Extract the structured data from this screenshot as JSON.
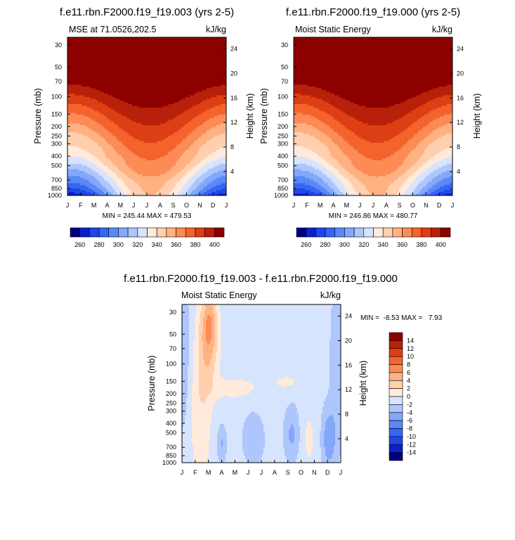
{
  "months": [
    "J",
    "F",
    "M",
    "A",
    "M",
    "J",
    "J",
    "A",
    "S",
    "O",
    "N",
    "D",
    "J"
  ],
  "pressure_ticks": [
    "30",
    "50",
    "70",
    "100",
    "150",
    "200",
    "250",
    "300",
    "400",
    "500",
    "700",
    "850",
    "1000"
  ],
  "height_ticks": [
    "24",
    "20",
    "16",
    "12",
    "8",
    "4"
  ],
  "panels": [
    {
      "title": "f.e11.rbn.F2000.f19_f19.003 (yrs 2-5)",
      "left_label": "MSE at 71.0526,202.5",
      "right_label": "kJ/kg",
      "ylabel": "Pressure (mb)",
      "y2label": "Height (km)",
      "stats": "MIN = 245.44 MAX = 479.53",
      "palette": [
        "#00007f",
        "#0a21c9",
        "#1f46e8",
        "#3566f2",
        "#5b88f7",
        "#84a7f9",
        "#adc6fb",
        "#d6e4fd",
        "#ffeadb",
        "#ffcfae",
        "#ffb182",
        "#fc8b55",
        "#f5632c",
        "#dd3f14",
        "#b8200a",
        "#8c0000"
      ],
      "bounds": [
        245,
        300,
        352,
        480
      ],
      "colorbar_ticks": [
        "260",
        "280",
        "300",
        "320",
        "340",
        "360",
        "380",
        "400"
      ]
    },
    {
      "title": "f.e11.rbn.F2000.f19_f19.000 (yrs 2-5)",
      "left_label": "Moist Static Energy",
      "right_label": "kJ/kg",
      "ylabel": "Pressure (mb)",
      "y2label": "Height (km)",
      "stats": "MIN = 246.86 MAX = 480.77",
      "palette": [
        "#00007f",
        "#0a21c9",
        "#1f46e8",
        "#3566f2",
        "#5b88f7",
        "#84a7f9",
        "#adc6fb",
        "#d6e4fd",
        "#ffeadb",
        "#ffcfae",
        "#ffb182",
        "#fc8b55",
        "#f5632c",
        "#dd3f14",
        "#b8200a",
        "#8c0000"
      ],
      "bounds": [
        246,
        301,
        352,
        481
      ],
      "colorbar_ticks": [
        "260",
        "280",
        "300",
        "320",
        "340",
        "360",
        "380",
        "400"
      ]
    },
    {
      "title": "f.e11.rbn.F2000.f19_f19.003 - f.e11.rbn.F2000.f19_f19.000",
      "left_label": "Moist Static Energy",
      "right_label": "kJ/kg",
      "ylabel": "Pressure (mb)",
      "y2label": "Height (km)",
      "stats": "MIN =  -8.53 MAX =   7.93",
      "palette": [
        "#8c0000",
        "#b8200a",
        "#dd3f14",
        "#f5632c",
        "#fc8b55",
        "#ffb182",
        "#ffcfae",
        "#ffeadb",
        "#d6e4fd",
        "#adc6fb",
        "#84a7f9",
        "#5b88f7",
        "#3566f2",
        "#1f46e8",
        "#0a21c9",
        "#00007f"
      ],
      "colorbar_ticks": [
        "14",
        "12",
        "10",
        "8",
        "6",
        "4",
        "2",
        "0",
        "-2",
        "-4",
        "-6",
        "-8",
        "-10",
        "-12",
        "-14"
      ]
    }
  ],
  "chart_data": [
    {
      "type": "heatmap",
      "title": "f.e11.rbn.F2000.f19_f19.003 (yrs 2-5)",
      "subtitle": "MSE at 71.0526,202.5",
      "units": "kJ/kg",
      "xlabel": "",
      "ylabel": "Pressure (mb)",
      "y2label": "Height (km)",
      "x_categories": [
        "J",
        "F",
        "M",
        "A",
        "M",
        "J",
        "J",
        "A",
        "S",
        "O",
        "N",
        "D",
        "J"
      ],
      "ylim": [
        1000,
        25
      ],
      "min": 245.44,
      "max": 479.53,
      "contour_levels": [
        250,
        260,
        270,
        280,
        290,
        300,
        310,
        320,
        330,
        340,
        350,
        360,
        370,
        380,
        390,
        400
      ]
    },
    {
      "type": "heatmap",
      "title": "f.e11.rbn.F2000.f19_f19.000 (yrs 2-5)",
      "subtitle": "Moist Static Energy",
      "units": "kJ/kg",
      "xlabel": "",
      "ylabel": "Pressure (mb)",
      "y2label": "Height (km)",
      "x_categories": [
        "J",
        "F",
        "M",
        "A",
        "M",
        "J",
        "J",
        "A",
        "S",
        "O",
        "N",
        "D",
        "J"
      ],
      "ylim": [
        1000,
        25
      ],
      "min": 246.86,
      "max": 480.77,
      "contour_levels": [
        250,
        260,
        270,
        280,
        290,
        300,
        310,
        320,
        330,
        340,
        350,
        360,
        370,
        380,
        390,
        400
      ]
    },
    {
      "type": "heatmap",
      "title": "f.e11.rbn.F2000.f19_f19.003 - f.e11.rbn.F2000.f19_f19.000",
      "subtitle": "Moist Static Energy",
      "units": "kJ/kg",
      "xlabel": "",
      "ylabel": "Pressure (mb)",
      "y2label": "Height (km)",
      "x_categories": [
        "J",
        "F",
        "M",
        "A",
        "M",
        "J",
        "J",
        "A",
        "S",
        "O",
        "N",
        "D",
        "J"
      ],
      "ylim": [
        1000,
        25
      ],
      "min": -8.53,
      "max": 7.93,
      "contour_levels": [
        -14,
        -12,
        -10,
        -8,
        -6,
        -4,
        -2,
        0,
        2,
        4,
        6,
        8,
        10,
        12,
        14
      ]
    }
  ]
}
